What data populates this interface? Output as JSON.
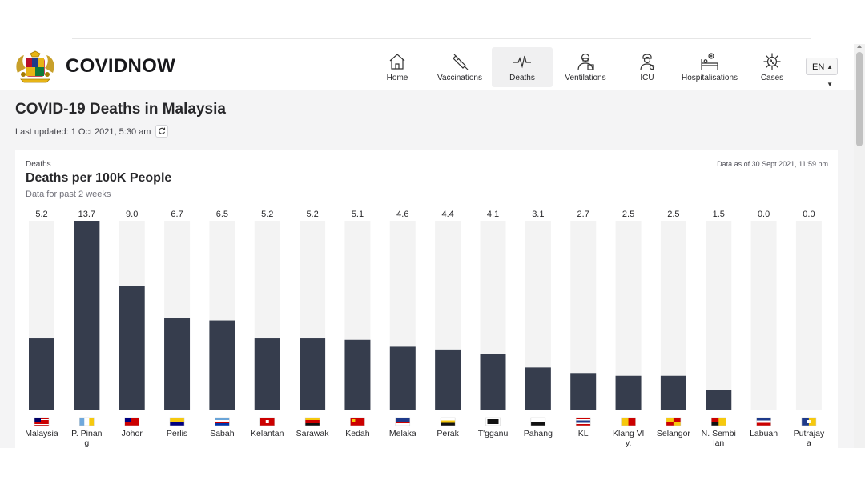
{
  "header": {
    "brand": "COVIDNOW",
    "nav": [
      {
        "label": "Home",
        "icon": "home-icon",
        "active": false
      },
      {
        "label": "Vaccinations",
        "icon": "syringe-icon",
        "active": false
      },
      {
        "label": "Deaths",
        "icon": "pulse-icon",
        "active": true
      },
      {
        "label": "Ventilations",
        "icon": "ventilator-icon",
        "active": false
      },
      {
        "label": "ICU",
        "icon": "icu-doctor-icon",
        "active": false
      },
      {
        "label": "Hospitalisations",
        "icon": "hospital-bed-icon",
        "active": false
      },
      {
        "label": "Cases",
        "icon": "virus-icon",
        "active": false
      }
    ],
    "language": "EN"
  },
  "page": {
    "title": "COVID-19 Deaths in Malaysia",
    "last_updated": "Last updated: 1 Oct 2021, 5:30 am"
  },
  "card": {
    "kicker": "Deaths",
    "title": "Deaths per 100K People",
    "subtitle": "Data for past 2 weeks",
    "data_as_of": "Data as of 30 Sept 2021, 11:59 pm"
  },
  "colors": {
    "bar": "#363d4d",
    "track": "#f3f3f3",
    "accent": "#18181b"
  },
  "chart_data": {
    "type": "bar",
    "title": "Deaths per 100K People",
    "subtitle": "Data for past 2 weeks",
    "categories": [
      {
        "label": "Malaysia",
        "lines": [
          "Malaysia"
        ]
      },
      {
        "label": "P. Pinang",
        "lines": [
          "P. Pinan",
          "g"
        ]
      },
      {
        "label": "Johor",
        "lines": [
          "Johor"
        ]
      },
      {
        "label": "Perlis",
        "lines": [
          "Perlis"
        ]
      },
      {
        "label": "Sabah",
        "lines": [
          "Sabah"
        ]
      },
      {
        "label": "Kelantan",
        "lines": [
          "Kelantan"
        ]
      },
      {
        "label": "Sarawak",
        "lines": [
          "Sarawak"
        ]
      },
      {
        "label": "Kedah",
        "lines": [
          "Kedah"
        ]
      },
      {
        "label": "Melaka",
        "lines": [
          "Melaka"
        ]
      },
      {
        "label": "Perak",
        "lines": [
          "Perak"
        ]
      },
      {
        "label": "T'gganu",
        "lines": [
          "T'gganu"
        ]
      },
      {
        "label": "Pahang",
        "lines": [
          "Pahang"
        ]
      },
      {
        "label": "KL",
        "lines": [
          "KL"
        ]
      },
      {
        "label": "Klang Vly.",
        "lines": [
          "Klang Vl",
          "y."
        ]
      },
      {
        "label": "Selangor",
        "lines": [
          "Selangor"
        ]
      },
      {
        "label": "N. Sembilan",
        "lines": [
          "N. Sembi",
          "lan"
        ]
      },
      {
        "label": "Labuan",
        "lines": [
          "Labuan"
        ]
      },
      {
        "label": "Putrajaya",
        "lines": [
          "Putrajay",
          "a"
        ]
      }
    ],
    "values": [
      5.2,
      13.7,
      9.0,
      6.7,
      6.5,
      5.2,
      5.2,
      5.1,
      4.6,
      4.4,
      4.1,
      3.1,
      2.7,
      2.5,
      2.5,
      1.5,
      0.0,
      0.0
    ],
    "value_labels": [
      "5.2",
      "13.7",
      "9.0",
      "6.7",
      "6.5",
      "5.2",
      "5.2",
      "5.1",
      "4.6",
      "4.4",
      "4.1",
      "3.1",
      "2.7",
      "2.5",
      "2.5",
      "1.5",
      "0.0",
      "0.0"
    ],
    "ylim": [
      0,
      13.7
    ],
    "grid": false,
    "legend": "none",
    "flags": [
      "malaysia-flag-icon",
      "penang-flag-icon",
      "johor-flag-icon",
      "perlis-flag-icon",
      "sabah-flag-icon",
      "kelantan-flag-icon",
      "sarawak-flag-icon",
      "kedah-flag-icon",
      "melaka-flag-icon",
      "perak-flag-icon",
      "terengganu-flag-icon",
      "pahang-flag-icon",
      "kl-flag-icon",
      "klang-valley-flag-icon",
      "selangor-flag-icon",
      "negeri-sembilan-flag-icon",
      "labuan-flag-icon",
      "putrajaya-flag-icon"
    ]
  }
}
